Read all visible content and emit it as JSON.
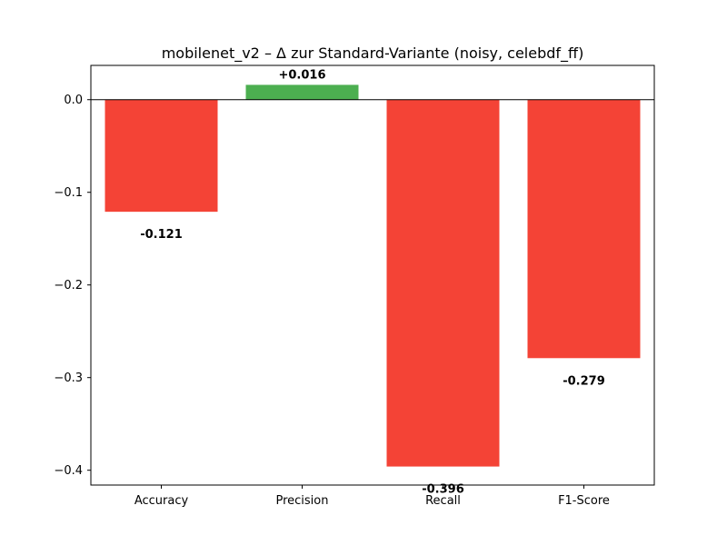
{
  "chart_data": {
    "type": "bar",
    "title": "mobilenet_v2 – Δ zur Standard-Variante (noisy, celebdf_ff)",
    "xlabel": "",
    "ylabel": "",
    "categories": [
      "Accuracy",
      "Precision",
      "Recall",
      "F1-Score"
    ],
    "values": [
      -0.121,
      0.016,
      -0.396,
      -0.279
    ],
    "value_labels": [
      "-0.121",
      "+0.016",
      "-0.396",
      "-0.279"
    ],
    "ylim": [
      -0.416,
      0.037
    ],
    "yticks": [
      0.0,
      -0.1,
      -0.2,
      -0.3,
      -0.4
    ],
    "ytick_labels": [
      "0.0",
      "−0.1",
      "−0.2",
      "−0.3",
      "−0.4"
    ],
    "zero_line": true,
    "grid": false,
    "colors": {
      "positive": "#4caf50",
      "negative": "#f44336"
    }
  }
}
